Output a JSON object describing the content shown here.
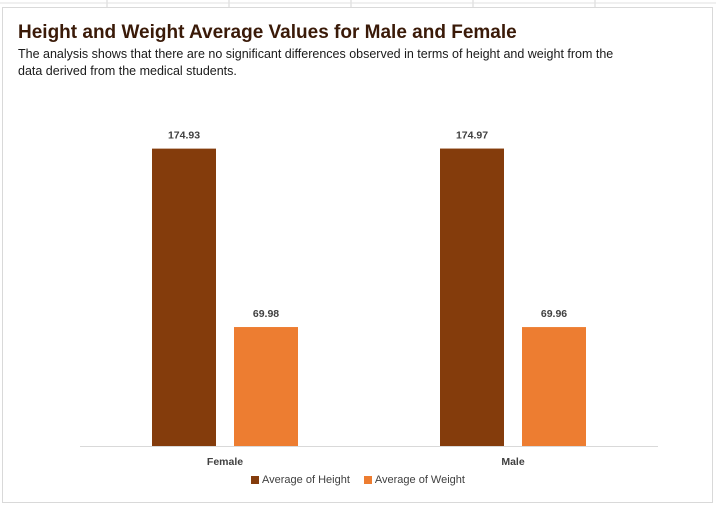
{
  "chart_data": {
    "type": "bar",
    "title": "Height and Weight Average Values for Male and Female",
    "subtitle": "The analysis shows that there are no significant differences observed in terms of height and weight from the data derived from the medical students.",
    "categories": [
      "Female",
      "Male"
    ],
    "series": [
      {
        "name": "Average of Height",
        "values": [
          174.93,
          174.97
        ],
        "labels": [
          "174.93",
          "174.97"
        ],
        "color": "#843C0C"
      },
      {
        "name": "Average of Weight",
        "values": [
          69.98,
          69.96
        ],
        "labels": [
          "69.98",
          "69.96"
        ],
        "color": "#ED7D31"
      }
    ],
    "xlabel": "",
    "ylabel": "",
    "ylim": [
      0,
      200
    ],
    "grid": false,
    "legend_position": "bottom"
  }
}
